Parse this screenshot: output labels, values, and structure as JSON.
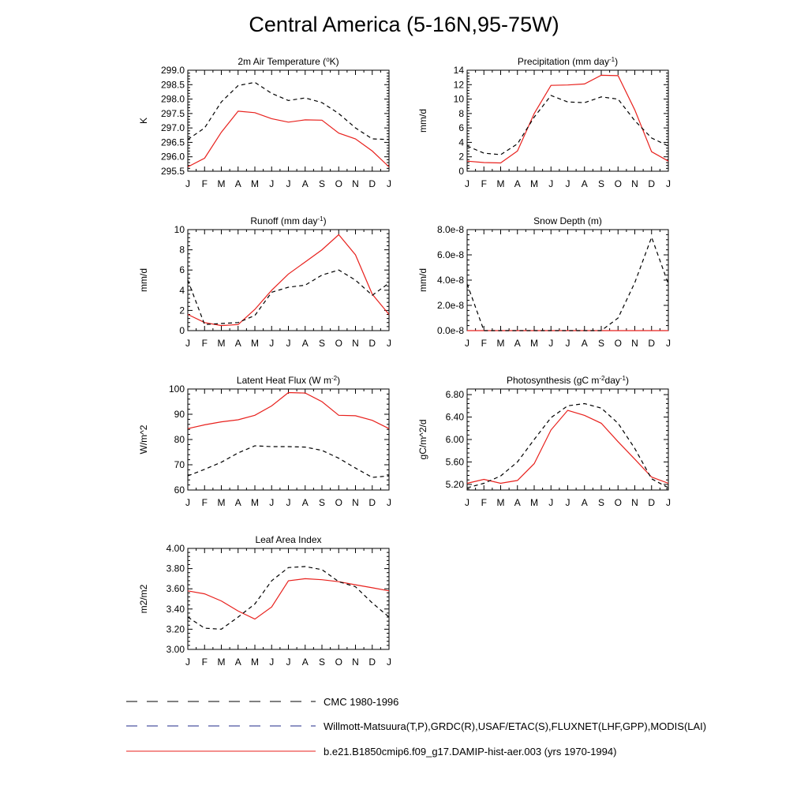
{
  "title": "Central America (5-16N,95-75W)",
  "months": [
    "J",
    "F",
    "M",
    "A",
    "M",
    "J",
    "J",
    "A",
    "S",
    "O",
    "N",
    "D",
    "J"
  ],
  "colors": {
    "model": "#e8211d",
    "obs": "#000000"
  },
  "legend": [
    {
      "label": "CMC 1980-1996",
      "style": "dashed",
      "color": "#000000"
    },
    {
      "label": "Willmott-Matsuura(T,P),GRDC(R),USAF/ETAC(S),FLUXNET(LHF,GPP),MODIS(LAI)",
      "style": "dashed",
      "color": "#1f2a88"
    },
    {
      "label": "b.e21.B1850cmip6.f09_g17.DAMIP-hist-aer.003 (yrs 1970-1994)",
      "style": "solid",
      "color": "#e8211d"
    }
  ],
  "chart_data": [
    {
      "type": "line",
      "title": "2m Air Temperature (",
      "title_sup": "o",
      "title_tail": "K)",
      "ylabel": "K",
      "ylim": [
        295.5,
        299.0
      ],
      "yticks": [
        "295.5",
        "296.0",
        "296.5",
        "297.0",
        "297.5",
        "298.0",
        "298.5",
        "299.0"
      ],
      "x": [
        "J",
        "F",
        "M",
        "A",
        "M",
        "J",
        "J",
        "A",
        "S",
        "O",
        "N",
        "D",
        "J"
      ],
      "series": [
        {
          "style": "solid",
          "values": [
            295.65,
            295.95,
            296.85,
            297.58,
            297.53,
            297.32,
            297.2,
            297.28,
            297.27,
            296.82,
            296.62,
            296.2,
            295.65
          ]
        },
        {
          "style": "dashed",
          "values": [
            296.6,
            297.0,
            297.9,
            298.47,
            298.58,
            298.2,
            297.95,
            298.04,
            297.88,
            297.5,
            297.0,
            296.62,
            296.6
          ]
        }
      ]
    },
    {
      "type": "line",
      "title": "Precipitation (mm day",
      "title_sup": "-1",
      "title_tail": ")",
      "ylabel": "mm/d",
      "ylim": [
        0,
        14
      ],
      "yticks": [
        "0",
        "2",
        "4",
        "6",
        "8",
        "10",
        "12",
        "14"
      ],
      "x": [
        "J",
        "F",
        "M",
        "A",
        "M",
        "J",
        "J",
        "A",
        "S",
        "O",
        "N",
        "D",
        "J"
      ],
      "series": [
        {
          "style": "solid",
          "values": [
            1.4,
            1.2,
            1.15,
            2.8,
            8.0,
            11.9,
            11.95,
            12.1,
            13.3,
            13.25,
            8.5,
            2.7,
            1.4
          ]
        },
        {
          "style": "dashed",
          "values": [
            3.5,
            2.5,
            2.3,
            3.8,
            7.5,
            10.5,
            9.6,
            9.5,
            10.3,
            10.0,
            7.0,
            4.6,
            3.5
          ]
        }
      ]
    },
    {
      "type": "line",
      "title": "Runoff (mm day",
      "title_sup": "-1",
      "title_tail": ")",
      "ylabel": "mm/d",
      "ylim": [
        0,
        10
      ],
      "yticks": [
        "0",
        "2",
        "4",
        "6",
        "8",
        "10"
      ],
      "x": [
        "J",
        "F",
        "M",
        "A",
        "M",
        "J",
        "J",
        "A",
        "S",
        "O",
        "N",
        "D",
        "J"
      ],
      "series": [
        {
          "style": "solid",
          "values": [
            1.6,
            0.8,
            0.5,
            0.6,
            2.1,
            4.0,
            5.6,
            6.8,
            8.0,
            9.5,
            7.5,
            3.6,
            1.6
          ]
        },
        {
          "style": "dashed",
          "values": [
            5.0,
            0.6,
            0.7,
            0.8,
            1.5,
            3.8,
            4.3,
            4.5,
            5.5,
            6.0,
            5.0,
            3.5,
            4.7
          ]
        }
      ]
    },
    {
      "type": "line",
      "title": "Snow Depth (m)",
      "title_sup": "",
      "title_tail": "",
      "ylabel": "mm/d",
      "ylim": [
        0,
        8e-08
      ],
      "yticks": [
        "0.0e-8",
        "2.0e-8",
        "4.0e-8",
        "6.0e-8",
        "8.0e-8"
      ],
      "x": [
        "J",
        "F",
        "M",
        "A",
        "M",
        "J",
        "J",
        "A",
        "S",
        "O",
        "N",
        "D",
        "J"
      ],
      "series": [
        {
          "style": "solid",
          "values": [
            0,
            0,
            0,
            0,
            0,
            0,
            0,
            0,
            0,
            0,
            0,
            0,
            0
          ]
        },
        {
          "style": "dashed",
          "values": [
            3.7e-08,
            0,
            0,
            0,
            0,
            0,
            0,
            0,
            0,
            1e-08,
            3.8e-08,
            7.4e-08,
            3.7e-08
          ]
        }
      ]
    },
    {
      "type": "line",
      "title": "Latent Heat Flux (W m",
      "title_sup": "-2",
      "title_tail": ")",
      "ylabel": "W/m^2",
      "ylim": [
        60,
        100
      ],
      "yticks": [
        "60",
        "70",
        "80",
        "90",
        "100"
      ],
      "x": [
        "J",
        "F",
        "M",
        "A",
        "M",
        "J",
        "J",
        "A",
        "S",
        "O",
        "N",
        "D",
        "J"
      ],
      "series": [
        {
          "style": "solid",
          "values": [
            84.3,
            85.8,
            87.0,
            87.8,
            89.6,
            93.3,
            98.6,
            98.4,
            95.0,
            89.6,
            89.4,
            87.6,
            84.3
          ]
        },
        {
          "style": "dashed",
          "values": [
            65.6,
            68.2,
            71.0,
            74.7,
            77.5,
            77.2,
            77.2,
            77.0,
            75.7,
            72.6,
            68.7,
            65.0,
            65.6
          ]
        }
      ]
    },
    {
      "type": "line",
      "title": "Photosynthesis (gC m",
      "title_sup": "-2",
      "title_tail": "day",
      "title_sup2": "-1",
      "title_tail2": ")",
      "ylabel": "gC/m^2/d",
      "ylim": [
        5.1,
        6.9
      ],
      "yticks": [
        "5.20",
        "5.60",
        "6.00",
        "6.40",
        "6.80"
      ],
      "ytick_values": [
        5.2,
        5.6,
        6.0,
        6.4,
        6.8
      ],
      "x": [
        "J",
        "F",
        "M",
        "A",
        "M",
        "J",
        "J",
        "A",
        "S",
        "O",
        "N",
        "D",
        "J"
      ],
      "series": [
        {
          "style": "solid",
          "values": [
            5.22,
            5.29,
            5.22,
            5.27,
            5.57,
            6.17,
            6.52,
            6.43,
            6.29,
            5.96,
            5.65,
            5.33,
            5.22
          ]
        },
        {
          "style": "dashed",
          "values": [
            5.14,
            5.22,
            5.35,
            5.6,
            6.0,
            6.39,
            6.6,
            6.64,
            6.56,
            6.29,
            5.84,
            5.3,
            5.14
          ]
        }
      ]
    },
    {
      "type": "line",
      "title": "Leaf Area Index",
      "title_sup": "",
      "title_tail": "",
      "ylabel": "m2/m2",
      "ylim": [
        3.0,
        4.0
      ],
      "yticks": [
        "3.00",
        "3.20",
        "3.40",
        "3.60",
        "3.80",
        "4.00"
      ],
      "x": [
        "J",
        "F",
        "M",
        "A",
        "M",
        "J",
        "J",
        "A",
        "S",
        "O",
        "N",
        "D",
        "J"
      ],
      "series": [
        {
          "style": "solid",
          "values": [
            3.58,
            3.55,
            3.48,
            3.38,
            3.3,
            3.42,
            3.68,
            3.7,
            3.69,
            3.67,
            3.64,
            3.61,
            3.58
          ]
        },
        {
          "style": "dashed",
          "values": [
            3.32,
            3.21,
            3.2,
            3.32,
            3.45,
            3.68,
            3.81,
            3.82,
            3.79,
            3.67,
            3.62,
            3.46,
            3.32
          ]
        }
      ]
    }
  ]
}
